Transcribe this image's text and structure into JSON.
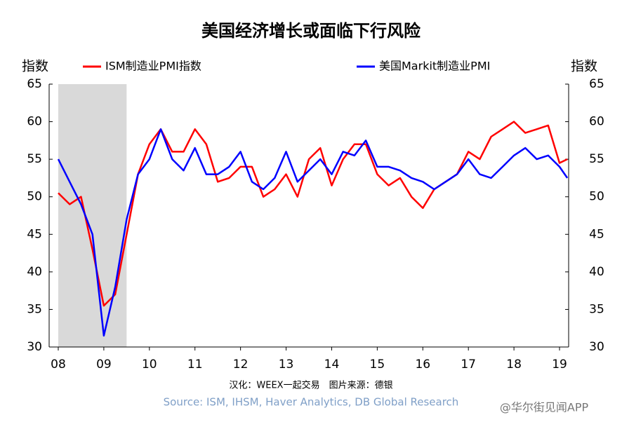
{
  "chart_data": {
    "type": "line",
    "title": "美国经济增长或面临下行风险",
    "y_label": "指数",
    "y2_label": "指数",
    "x": [
      2008,
      2008.25,
      2008.5,
      2008.75,
      2009,
      2009.25,
      2009.5,
      2009.75,
      2010,
      2010.25,
      2010.5,
      2010.75,
      2011,
      2011.25,
      2011.5,
      2011.75,
      2012,
      2012.25,
      2012.5,
      2012.75,
      2013,
      2013.25,
      2013.5,
      2013.75,
      2014,
      2014.25,
      2014.5,
      2014.75,
      2015,
      2015.25,
      2015.5,
      2015.75,
      2016,
      2016.25,
      2016.5,
      2016.75,
      2017,
      2017.25,
      2017.5,
      2017.75,
      2018,
      2018.25,
      2018.5,
      2018.75,
      2019,
      2019.17
    ],
    "series": [
      {
        "name": "ISM制造业PMI指数",
        "color": "#ff0000",
        "values": [
          50.5,
          49,
          50,
          43,
          35.5,
          37,
          45,
          53,
          57,
          59,
          56,
          56,
          59,
          57,
          52,
          52.5,
          54,
          54,
          50,
          51,
          53,
          50,
          55,
          56.5,
          51.5,
          55,
          57,
          57,
          53,
          51.5,
          52.5,
          50,
          48.5,
          51,
          52,
          53,
          56,
          55,
          58,
          59,
          60,
          58.5,
          59,
          59.5,
          54.5,
          55
        ]
      },
      {
        "name": "美国Markit制造业PMI",
        "color": "#0000ff",
        "values": [
          55,
          52,
          49,
          45,
          31.5,
          38,
          47,
          53,
          55,
          59,
          55,
          53.5,
          56.5,
          53,
          53,
          54,
          56,
          52,
          51,
          52.5,
          56,
          52,
          53.5,
          55,
          53,
          56,
          55.5,
          57.5,
          54,
          54,
          53.5,
          52.5,
          52,
          51,
          52,
          53,
          55,
          53,
          52.5,
          54,
          55.5,
          56.5,
          55,
          55.5,
          54,
          52.5
        ]
      }
    ],
    "shaded_x": [
      2008,
      2009.5
    ],
    "xlim": [
      2007.8,
      2019.2
    ],
    "xticks": [
      {
        "value": 2008,
        "label": "08"
      },
      {
        "value": 2009,
        "label": "09"
      },
      {
        "value": 2010,
        "label": "10"
      },
      {
        "value": 2011,
        "label": "11"
      },
      {
        "value": 2012,
        "label": "12"
      },
      {
        "value": 2013,
        "label": "13"
      },
      {
        "value": 2014,
        "label": "14"
      },
      {
        "value": 2015,
        "label": "15"
      },
      {
        "value": 2016,
        "label": "16"
      },
      {
        "value": 2017,
        "label": "17"
      },
      {
        "value": 2018,
        "label": "18"
      },
      {
        "value": 2019,
        "label": "19"
      }
    ],
    "ylim": [
      30,
      65
    ],
    "yticks": [
      30,
      35,
      40,
      45,
      50,
      55,
      60,
      65
    ],
    "y2lim": [
      30,
      65
    ],
    "y2ticks": [
      30,
      35,
      40,
      45,
      50,
      55,
      60,
      65
    ],
    "credit": "汉化：WEEX一起交易　图片来源：德银",
    "source": "Source: ISM, IHSM, Haver Analytics, DB Global Research",
    "watermark": "@华尔街见闻APP"
  }
}
